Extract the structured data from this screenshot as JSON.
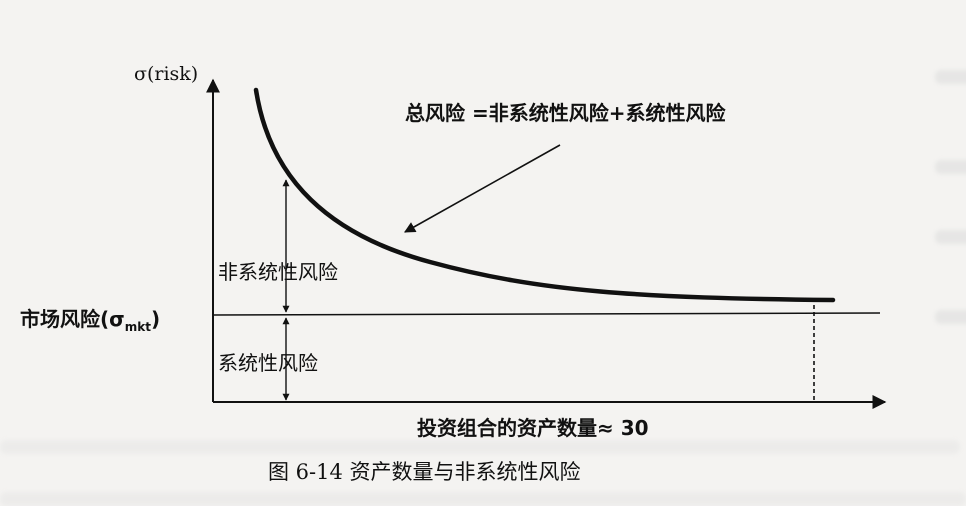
{
  "diagram": {
    "y_axis_label": "σ(risk)",
    "total_risk_label": "总风险 =非系统性风险+系统性风险",
    "unsystematic_label": "非系统性风险",
    "systematic_label": "系统性风险",
    "market_risk_label": "市场风险(σ",
    "market_risk_sub": "mkt",
    "market_risk_close": ")",
    "x_axis_label": "投资组合的资产数量≈ 30"
  },
  "caption": "图 6-14  资产数量与非系统性风险"
}
